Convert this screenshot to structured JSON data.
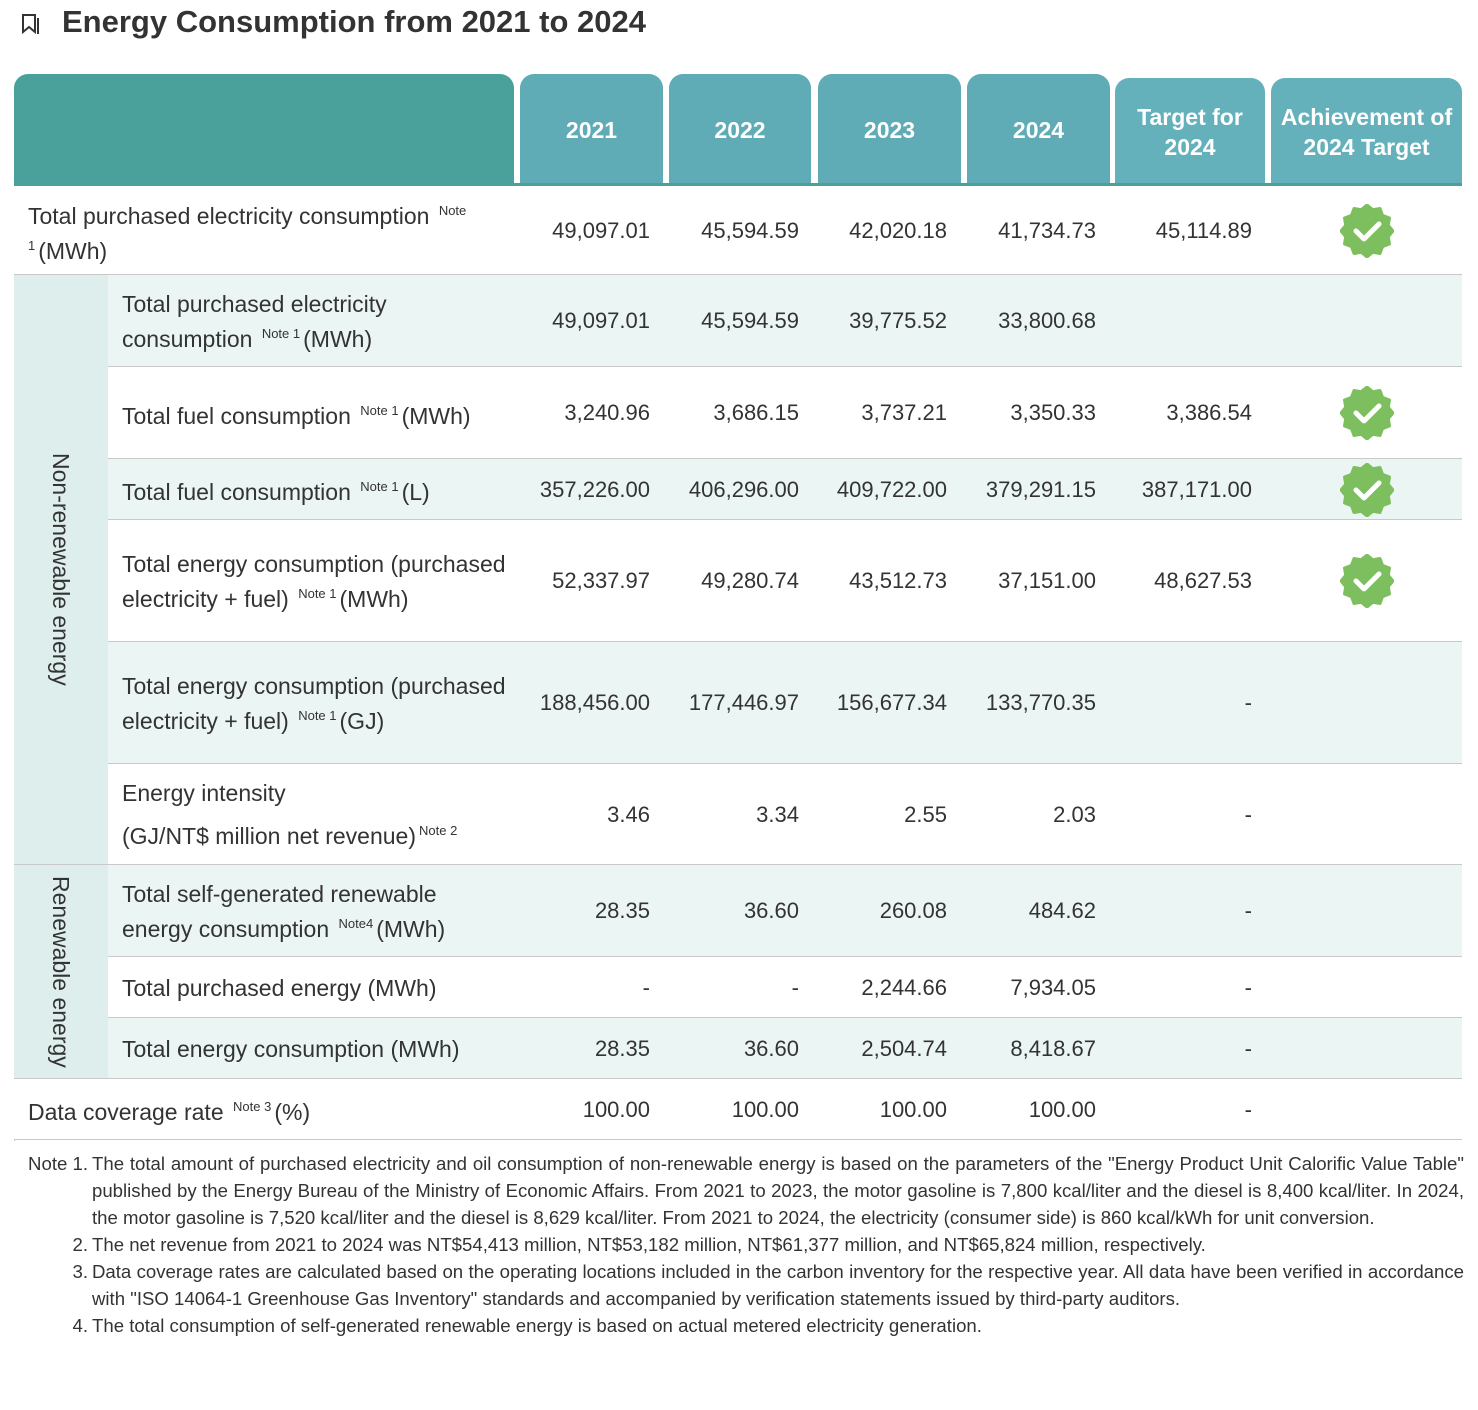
{
  "title": "Energy Consumption from 2021 to 2024",
  "table": {
    "headers": [
      "2021",
      "2022",
      "2023",
      "2024",
      "Target for 2024",
      "Achievement of 2024 Target"
    ],
    "sections": [
      {
        "rows": [
          {
            "label": "Total purchased electricity consumption",
            "note": "Note 1",
            "unit": "(MWh)",
            "values": [
              "49,097.01",
              "45,594.59",
              "42,020.18",
              "41,734.73",
              "45,114.89"
            ],
            "achieved": true
          }
        ]
      },
      {
        "label": "Non-renewable energy",
        "rows": [
          {
            "label": "Total purchased electricity consumption",
            "note": "Note 1",
            "unit": "(MWh)",
            "values": [
              "49,097.01",
              "45,594.59",
              "39,775.52",
              "33,800.68",
              null
            ],
            "achieved": false
          },
          {
            "label": "Total fuel consumption",
            "note": "Note 1",
            "unit": "(MWh)",
            "values": [
              "3,240.96",
              "3,686.15",
              "3,737.21",
              "3,350.33",
              "3,386.54"
            ],
            "achieved": true
          },
          {
            "label": "Total fuel consumption",
            "note": "Note 1",
            "unit": "(L)",
            "values": [
              "357,226.00",
              "406,296.00",
              "409,722.00",
              "379,291.15",
              "387,171.00"
            ],
            "achieved": true
          },
          {
            "label": "Total energy consumption (purchased electricity + fuel)",
            "note": "Note 1",
            "unit": "(MWh)",
            "values": [
              "52,337.97",
              "49,280.74",
              "43,512.73",
              "37,151.00",
              "48,627.53"
            ],
            "achieved": true
          },
          {
            "label": "Total energy consumption (purchased electricity + fuel)",
            "note": "Note 1",
            "unit": "(GJ)",
            "values": [
              "188,456.00",
              "177,446.97",
              "156,677.34",
              "133,770.35",
              "-"
            ],
            "achieved": false
          },
          {
            "label": "Energy intensity",
            "unit": "(GJ/NT$ million net revenue)",
            "note": "Note 2",
            "values": [
              "3.46",
              "3.34",
              "2.55",
              "2.03",
              "-"
            ],
            "achieved": false
          }
        ]
      },
      {
        "label": "Renewable energy",
        "rows": [
          {
            "label": "Total self-generated renewable energy consumption",
            "note": "Note4",
            "unit": "(MWh)",
            "values": [
              "28.35",
              "36.60",
              "260.08",
              "484.62",
              "-"
            ],
            "achieved": false
          },
          {
            "label": "Total purchased energy",
            "unit": "(MWh)",
            "values": [
              "-",
              "-",
              "2,244.66",
              "7,934.05",
              "-"
            ],
            "achieved": false
          },
          {
            "label": "Total energy consumption",
            "unit": "(MWh)",
            "values": [
              "28.35",
              "36.60",
              "2,504.74",
              "8,418.67",
              "-"
            ],
            "achieved": false
          }
        ]
      },
      {
        "rows": [
          {
            "label": "Data coverage rate",
            "note": "Note 3",
            "unit": "(%)",
            "values": [
              "100.00",
              "100.00",
              "100.00",
              "100.00",
              "-"
            ],
            "achieved": false
          }
        ]
      }
    ]
  },
  "notes": [
    {
      "marker": "Note 1.",
      "text": "The total amount of purchased electricity and oil consumption of non-renewable energy is based on the parameters of the \"Energy Product Unit Calorific Value Table\" published by the Energy Bureau of the Ministry of Economic Affairs. From 2021 to 2023, the motor gasoline is 7,800 kcal/liter and the diesel is 8,400 kcal/liter. In 2024, the motor gasoline is 7,520 kcal/liter and the diesel is 8,629 kcal/liter. From 2021 to 2024, the electricity (consumer side) is 860 kcal/kWh for unit conversion."
    },
    {
      "marker": "2.",
      "text": "The net revenue from 2021 to 2024 was NT$54,413 million, NT$53,182 million, NT$61,377 million, and NT$65,824 million, respectively."
    },
    {
      "marker": "3.",
      "text": "Data coverage rates are calculated based on the operating locations included in the carbon inventory for the respective year. All data have been verified in accordance with \"ISO 14064-1 Greenhouse Gas Inventory\" standards and accompanied by verification statements issued by third-party auditors."
    },
    {
      "marker": "4.",
      "text": "The total consumption of self-generated renewable energy is based on actual metered electricity generation."
    }
  ]
}
